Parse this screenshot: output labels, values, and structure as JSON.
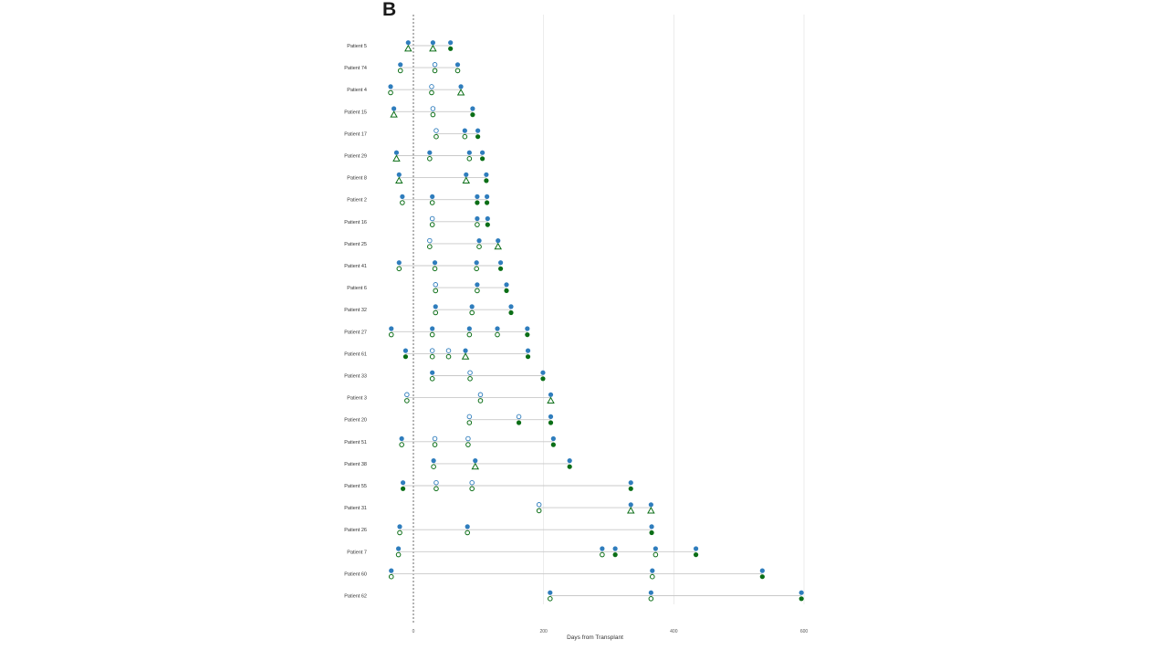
{
  "panel_label": "B",
  "colors": {
    "blue": "#2f7dbd",
    "green": "#0b6e16",
    "line": "#c8c8c8",
    "grid": "#e6e6e6",
    "zero_line": "#444444"
  },
  "chart_data": {
    "type": "scatter",
    "title": "",
    "xlabel": "Days from Transplant",
    "ylabel": "",
    "xlim": [
      -40,
      600
    ],
    "xticks": [
      0,
      200,
      400,
      600
    ],
    "grid": "vertical",
    "zero_line": "dashed at 0",
    "marker_legend": {
      "top_row_color": "blue",
      "bottom_row_shapes": [
        "filled circle",
        "open circle",
        "open triangle"
      ]
    },
    "patients": [
      {
        "label": "Patient 5",
        "points": [
          {
            "x": -8,
            "bottom": "triangle"
          },
          {
            "x": 30,
            "bottom": "triangle"
          },
          {
            "x": 57,
            "bottom": "filled"
          }
        ]
      },
      {
        "label": "Patient 74",
        "points": [
          {
            "x": -20,
            "bottom": "open"
          },
          {
            "x": 33,
            "bottom": "open",
            "top": "open"
          },
          {
            "x": 68,
            "bottom": "open"
          }
        ]
      },
      {
        "label": "Patient 4",
        "points": [
          {
            "x": -35,
            "bottom": "open"
          },
          {
            "x": 28,
            "bottom": "open",
            "top": "open"
          },
          {
            "x": 73,
            "bottom": "triangle"
          }
        ]
      },
      {
        "label": "Patient 15",
        "points": [
          {
            "x": -30,
            "bottom": "triangle"
          },
          {
            "x": 30,
            "bottom": "open",
            "top": "open"
          },
          {
            "x": 91,
            "bottom": "filled"
          }
        ]
      },
      {
        "label": "Patient 17",
        "points": [
          {
            "x": 35,
            "bottom": "open",
            "top": "open"
          },
          {
            "x": 79,
            "bottom": "open"
          },
          {
            "x": 99,
            "bottom": "filled"
          }
        ]
      },
      {
        "label": "Patient 29",
        "points": [
          {
            "x": -26,
            "bottom": "triangle"
          },
          {
            "x": 25,
            "bottom": "open"
          },
          {
            "x": 86,
            "bottom": "open"
          },
          {
            "x": 106,
            "bottom": "filled"
          }
        ]
      },
      {
        "label": "Patient 8",
        "points": [
          {
            "x": -22,
            "bottom": "triangle"
          },
          {
            "x": 81,
            "bottom": "triangle"
          },
          {
            "x": 112,
            "bottom": "filled"
          }
        ]
      },
      {
        "label": "Patient 2",
        "points": [
          {
            "x": -17,
            "bottom": "open"
          },
          {
            "x": 29,
            "bottom": "open"
          },
          {
            "x": 98,
            "bottom": "filled"
          },
          {
            "x": 113,
            "bottom": "filled"
          }
        ]
      },
      {
        "label": "Patient 16",
        "points": [
          {
            "x": 29,
            "bottom": "open",
            "top": "open"
          },
          {
            "x": 98,
            "bottom": "open"
          },
          {
            "x": 114,
            "bottom": "filled"
          }
        ]
      },
      {
        "label": "Patient 25",
        "points": [
          {
            "x": 25,
            "bottom": "open",
            "top": "open"
          },
          {
            "x": 101,
            "bottom": "open"
          },
          {
            "x": 130,
            "bottom": "triangle"
          }
        ]
      },
      {
        "label": "Patient 41",
        "points": [
          {
            "x": -22,
            "bottom": "open"
          },
          {
            "x": 33,
            "bottom": "open"
          },
          {
            "x": 97,
            "bottom": "open"
          },
          {
            "x": 134,
            "bottom": "filled"
          }
        ]
      },
      {
        "label": "Patient 6",
        "points": [
          {
            "x": 34,
            "bottom": "open",
            "top": "open"
          },
          {
            "x": 98,
            "bottom": "open"
          },
          {
            "x": 143,
            "bottom": "filled"
          }
        ]
      },
      {
        "label": "Patient 32",
        "points": [
          {
            "x": 34,
            "bottom": "open"
          },
          {
            "x": 90,
            "bottom": "open"
          },
          {
            "x": 150,
            "bottom": "filled"
          }
        ]
      },
      {
        "label": "Patient 27",
        "points": [
          {
            "x": -34,
            "bottom": "open"
          },
          {
            "x": 29,
            "bottom": "open"
          },
          {
            "x": 86,
            "bottom": "open"
          },
          {
            "x": 129,
            "bottom": "open"
          },
          {
            "x": 175,
            "bottom": "filled"
          }
        ]
      },
      {
        "label": "Patient 61",
        "points": [
          {
            "x": -12,
            "bottom": "filled"
          },
          {
            "x": 29,
            "bottom": "open",
            "top": "open"
          },
          {
            "x": 54,
            "bottom": "open",
            "top": "open"
          },
          {
            "x": 80,
            "bottom": "triangle"
          },
          {
            "x": 176,
            "bottom": "filled"
          }
        ]
      },
      {
        "label": "Patient 33",
        "points": [
          {
            "x": 29,
            "bottom": "open"
          },
          {
            "x": 87,
            "bottom": "open",
            "top": "open"
          },
          {
            "x": 199,
            "bottom": "filled"
          }
        ]
      },
      {
        "label": "Patient 3",
        "points": [
          {
            "x": -10,
            "bottom": "open",
            "top": "open"
          },
          {
            "x": 103,
            "bottom": "open",
            "top": "open"
          },
          {
            "x": 211,
            "bottom": "triangle"
          }
        ]
      },
      {
        "label": "Patient 20",
        "points": [
          {
            "x": 86,
            "bottom": "open",
            "top": "open"
          },
          {
            "x": 162,
            "bottom": "filled",
            "top": "open"
          },
          {
            "x": 211,
            "bottom": "filled"
          }
        ]
      },
      {
        "label": "Patient 51",
        "points": [
          {
            "x": -18,
            "bottom": "open"
          },
          {
            "x": 33,
            "bottom": "open",
            "top": "open"
          },
          {
            "x": 84,
            "bottom": "open",
            "top": "open"
          },
          {
            "x": 215,
            "bottom": "filled"
          }
        ]
      },
      {
        "label": "Patient 38",
        "points": [
          {
            "x": 31,
            "bottom": "open"
          },
          {
            "x": 95,
            "bottom": "triangle"
          },
          {
            "x": 240,
            "bottom": "filled"
          }
        ]
      },
      {
        "label": "Patient 55",
        "points": [
          {
            "x": -16,
            "bottom": "filled"
          },
          {
            "x": 35,
            "bottom": "open",
            "top": "open"
          },
          {
            "x": 90,
            "bottom": "open",
            "top": "open"
          },
          {
            "x": 334,
            "bottom": "filled"
          }
        ]
      },
      {
        "label": "Patient 31",
        "points": [
          {
            "x": 193,
            "bottom": "open",
            "top": "open"
          },
          {
            "x": 334,
            "bottom": "triangle"
          },
          {
            "x": 365,
            "bottom": "triangle"
          }
        ]
      },
      {
        "label": "Patient 26",
        "points": [
          {
            "x": -21,
            "bottom": "open"
          },
          {
            "x": 83,
            "bottom": "open"
          },
          {
            "x": 366,
            "bottom": "filled"
          }
        ]
      },
      {
        "label": "Patient 7",
        "points": [
          {
            "x": -23,
            "bottom": "open"
          },
          {
            "x": 290,
            "bottom": "open"
          },
          {
            "x": 310,
            "bottom": "filled"
          },
          {
            "x": 372,
            "bottom": "open"
          },
          {
            "x": 434,
            "bottom": "filled"
          }
        ]
      },
      {
        "label": "Patient 60",
        "points": [
          {
            "x": -34,
            "bottom": "open"
          },
          {
            "x": 367,
            "bottom": "open"
          },
          {
            "x": 536,
            "bottom": "filled"
          }
        ]
      },
      {
        "label": "Patient 62",
        "points": [
          {
            "x": 210,
            "bottom": "open"
          },
          {
            "x": 365,
            "bottom": "open"
          },
          {
            "x": 596,
            "bottom": "filled"
          }
        ]
      }
    ]
  }
}
